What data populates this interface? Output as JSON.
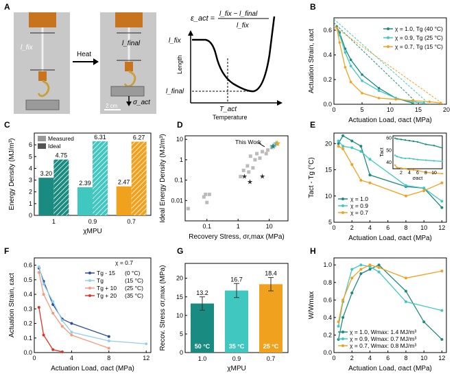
{
  "colors": {
    "teal_dark": "#1a8b80",
    "teal_light": "#3fc7c0",
    "orange": "#f0a21e",
    "blue_dark": "#2b4aa0",
    "blue_light": "#8fd0ee",
    "salmon": "#f59a7a",
    "red": "#e03025",
    "gray": "#bbbbbb"
  },
  "panelA": {
    "label": "A",
    "photo_l_fix": "l_fix",
    "photo_l_final": "l_final",
    "arrow_label": "Heat",
    "sigma_label": "σ_act",
    "scale_label": "2 cm",
    "formula_lhs": "ε_act =",
    "formula_num": "l_fix − l_final",
    "formula_den": "l_fix",
    "ylabel": "Length",
    "xlabel": "Temperature",
    "y_lfix": "l_fix",
    "y_lfinal": "l_final",
    "x_tact": "T_act"
  },
  "chart_data": [
    {
      "panel": "B",
      "type": "line",
      "title": "",
      "xlabel": "Actuation Load, σact (MPa)",
      "ylabel": "Actuation Strain, εact",
      "xlim": [
        0,
        20
      ],
      "ylim": [
        0,
        0.7
      ],
      "xticks": [
        "0",
        "5",
        "10",
        "15",
        "20"
      ],
      "yticks": [
        "0.0",
        "0.2",
        "0.4",
        "0.6"
      ],
      "series": [
        {
          "name": "χ = 1.0, Tg (40 °C)",
          "color": "#1a8b80",
          "x": [
            0.5,
            1,
            2,
            3,
            5,
            8,
            11,
            14
          ],
          "y": [
            0.63,
            0.58,
            0.45,
            0.36,
            0.24,
            0.13,
            0.05,
            0.01
          ],
          "ideal": [
            [
              0,
              0.66
            ],
            [
              15,
              0
            ]
          ]
        },
        {
          "name": "χ = 0.9, Tg (25 °C)",
          "color": "#3fc7c0",
          "x": [
            0.5,
            1,
            2,
            3,
            5,
            8,
            11,
            14,
            16
          ],
          "y": [
            0.62,
            0.56,
            0.42,
            0.31,
            0.19,
            0.11,
            0.05,
            0.02,
            0.01
          ],
          "ideal": [
            [
              0,
              0.69
            ],
            [
              17,
              0
            ]
          ]
        },
        {
          "name": "χ = 0.7, Tg (15 °C)",
          "color": "#f0a21e",
          "x": [
            0.5,
            1,
            2,
            3,
            5,
            8,
            11,
            14,
            17,
            19
          ],
          "y": [
            0.62,
            0.5,
            0.3,
            0.18,
            0.09,
            0.05,
            0.04,
            0.03,
            0.02,
            0.01
          ],
          "ideal": [
            [
              0,
              0.63
            ],
            [
              19.5,
              0
            ]
          ]
        }
      ]
    },
    {
      "panel": "C",
      "type": "bar",
      "title": "",
      "xlabel": "χMPU",
      "ylabel": "Energy Density (MJ/m³)",
      "categories": [
        "1",
        "0.9",
        "0.7"
      ],
      "ylim": [
        0,
        7
      ],
      "yticks": [
        "0",
        "1",
        "2",
        "3",
        "4",
        "5",
        "6"
      ],
      "series": [
        {
          "name": "Measured",
          "values": [
            3.2,
            2.39,
            2.47
          ]
        },
        {
          "name": "Ideal",
          "values": [
            4.75,
            6.31,
            6.27
          ]
        }
      ],
      "value_labels": {
        "Measured": [
          "3.20",
          "2.39",
          "2.47"
        ],
        "Ideal": [
          "4.75",
          "6.31",
          "6.27"
        ]
      }
    },
    {
      "panel": "D",
      "type": "scatter",
      "title": "",
      "xlabel": "Recovery Stress, σr,max (MPa)",
      "ylabel": "Ideal Energy Density (MJ/m³)",
      "xscale": "log",
      "yscale": "log",
      "xlim": [
        0.02,
        40
      ],
      "ylim": [
        0.001,
        15
      ],
      "xticks": [
        "0.1",
        "1",
        "10"
      ],
      "yticks": [
        "0.01",
        "0.1",
        "1",
        "10"
      ],
      "annotation": "This Work",
      "gray_points": [
        [
          0.025,
          0.004
        ],
        [
          0.08,
          0.015
        ],
        [
          0.09,
          0.02
        ],
        [
          0.1,
          0.008
        ],
        [
          0.12,
          0.02
        ],
        [
          1.2,
          0.15
        ],
        [
          1.5,
          0.3
        ],
        [
          2,
          0.5
        ],
        [
          2.2,
          0.25
        ],
        [
          2.5,
          1.5
        ],
        [
          3,
          0.4
        ],
        [
          3.5,
          1.0
        ],
        [
          4,
          2.0
        ],
        [
          5,
          1.2
        ],
        [
          6,
          2.5
        ],
        [
          8,
          2.0
        ],
        [
          9,
          3.0
        ],
        [
          12,
          4.0
        ],
        [
          15,
          5.0
        ]
      ],
      "star_points": [
        [
          1.6,
          0.15
        ],
        [
          2.4,
          0.08
        ],
        [
          6,
          0.15
        ]
      ],
      "this_work": [
        [
          13.2,
          4.75
        ],
        [
          16.7,
          6.31
        ],
        [
          18.4,
          6.27
        ]
      ]
    },
    {
      "panel": "E",
      "type": "line",
      "title": "",
      "xlabel": "Actuation Load, σact (MPa)",
      "ylabel": "Tact - Tg (°C)",
      "xlim": [
        0,
        12.5
      ],
      "ylim": [
        5,
        22
      ],
      "xticks": [
        "0",
        "2",
        "4",
        "6",
        "8",
        "10",
        "12"
      ],
      "yticks": [
        "5",
        "10",
        "15",
        "20"
      ],
      "series": [
        {
          "name": "χ = 1.0",
          "color": "#1a8b80",
          "x": [
            0.5,
            1,
            2,
            3,
            4,
            8,
            10,
            12
          ],
          "y": [
            20,
            21.5,
            20.5,
            19.5,
            14,
            11.8,
            11.5,
            7.8
          ]
        },
        {
          "name": "χ = 0.9",
          "color": "#3fc7c0",
          "x": [
            0.5,
            1,
            2,
            3,
            4,
            8,
            10,
            12
          ],
          "y": [
            20.5,
            19.5,
            19.2,
            18.5,
            17,
            12,
            11.5,
            9
          ]
        },
        {
          "name": "χ = 0.7",
          "color": "#f0a21e",
          "x": [
            0.5,
            1,
            2,
            3,
            4,
            8,
            10,
            12
          ],
          "y": [
            19.5,
            19,
            16,
            13,
            12.5,
            10,
            11,
            12.5
          ]
        }
      ],
      "inset": {
        "xlabel": "σact",
        "ylabel": "Tact",
        "xticks": [
          "2",
          "4",
          "6",
          "8",
          "10"
        ],
        "yticks": [
          "40",
          "50",
          "60"
        ],
        "xlim": [
          0,
          12
        ],
        "ylim": [
          35,
          62
        ],
        "series": [
          {
            "color": "#1a8b80",
            "x": [
              0.5,
              1,
              2,
              3,
              4,
              5,
              6,
              8,
              10,
              12
            ],
            "y": [
              60,
              59.5,
              59,
              58.5,
              58,
              57.5,
              57,
              55,
              54,
              52
            ]
          },
          {
            "color": "#3fc7c0",
            "x": [
              0.5,
              1,
              2,
              3,
              4,
              5,
              6,
              8,
              10,
              12
            ],
            "y": [
              46,
              45,
              44,
              43.5,
              43.5,
              43,
              42.5,
              42,
              41.5,
              41
            ]
          },
          {
            "color": "#f0a21e",
            "x": [
              0.5,
              1,
              2,
              3,
              4,
              5,
              6,
              8,
              10,
              12
            ],
            "y": [
              38,
              36,
              35.5,
              35,
              34,
              34,
              33.5,
              32,
              31.5,
              31
            ]
          }
        ]
      }
    },
    {
      "panel": "F",
      "type": "line",
      "title": "χ = 0.7",
      "xlabel": "Actuation Load, σact (MPa)",
      "ylabel": "Actuation Strain, εact",
      "xlim": [
        0,
        12.5
      ],
      "ylim": [
        0,
        0.65
      ],
      "xticks": [
        "0",
        "4",
        "8",
        "12"
      ],
      "yticks": [
        "0.0",
        "0.1",
        "0.2",
        "0.3",
        "0.4",
        "0.5",
        "0.6"
      ],
      "series": [
        {
          "name": "Tg - 15",
          "temp": "(0 °C)",
          "color": "#2b4aa0",
          "x": [
            0.5,
            1,
            2,
            3,
            4,
            8
          ],
          "y": [
            0.58,
            0.49,
            0.33,
            0.23,
            0.2,
            0.11
          ]
        },
        {
          "name": "Tg",
          "temp": "(15 °C)",
          "color": "#8fd0ee",
          "x": [
            0.5,
            1,
            2,
            3,
            4,
            8,
            12
          ],
          "y": [
            0.59,
            0.47,
            0.35,
            0.22,
            0.14,
            0.08,
            0.06
          ]
        },
        {
          "name": "Tg + 10",
          "temp": "(25 °C)",
          "color": "#f59a7a",
          "x": [
            0.5,
            1,
            2,
            3,
            4,
            8
          ],
          "y": [
            0.55,
            0.4,
            0.27,
            0.18,
            0.12,
            0.03
          ]
        },
        {
          "name": "Tg + 20",
          "temp": "(35 °C)",
          "color": "#e03025",
          "x": [
            0.5,
            1,
            2,
            3
          ],
          "y": [
            0.31,
            0.12,
            0.02,
            0.005
          ]
        }
      ]
    },
    {
      "panel": "G",
      "type": "bar",
      "title": "",
      "xlabel": "χMPU",
      "ylabel": "Recov. Stress σr,max (MPa)",
      "categories": [
        "1.0",
        "0.9",
        "0.7"
      ],
      "ylim": [
        0,
        24
      ],
      "yticks": [
        "0",
        "5",
        "10",
        "15",
        "20"
      ],
      "values": [
        13.2,
        16.7,
        18.4
      ],
      "errors": [
        1.8,
        1.9,
        1.8
      ],
      "value_labels": [
        "13.2",
        "16.7",
        "18.4"
      ],
      "bar_labels": [
        "50 °C",
        "35 °C",
        "25 °C"
      ],
      "colors": [
        "#1a8b80",
        "#3fc7c0",
        "#f0a21e"
      ]
    },
    {
      "panel": "H",
      "type": "line",
      "title": "",
      "xlabel": "Actuation Load, σact (MPa)",
      "ylabel": "W/Wmax",
      "xlim": [
        0,
        12.5
      ],
      "ylim": [
        0,
        1.08
      ],
      "xticks": [
        "0",
        "2",
        "4",
        "6",
        "8",
        "10",
        "12"
      ],
      "yticks": [
        "0.0",
        "0.2",
        "0.4",
        "0.6",
        "0.8",
        "1.0"
      ],
      "series": [
        {
          "name": "χ = 1.0, Wmax: 1.4 MJ/m³",
          "color": "#1a8b80",
          "x": [
            0.5,
            1,
            2,
            3,
            4,
            5,
            8,
            10,
            12
          ],
          "y": [
            0.15,
            0.4,
            0.68,
            0.9,
            0.95,
            1.0,
            0.7,
            0.35,
            0.15
          ]
        },
        {
          "name": "χ = 0.9, Wmax: 0.7 MJ/m³",
          "color": "#3fc7c0",
          "x": [
            0.5,
            1,
            2,
            3,
            4,
            5,
            8,
            12
          ],
          "y": [
            0.3,
            0.58,
            0.95,
            1.0,
            0.98,
            0.92,
            0.58,
            0.48
          ]
        },
        {
          "name": "χ = 0.7, Wmax: 0.8 MJ/m³",
          "color": "#f0a21e",
          "x": [
            0.5,
            1,
            2,
            3,
            4,
            5,
            8,
            12
          ],
          "y": [
            0.35,
            0.6,
            0.85,
            0.95,
            1.0,
            0.97,
            0.85,
            0.93
          ]
        }
      ]
    }
  ]
}
